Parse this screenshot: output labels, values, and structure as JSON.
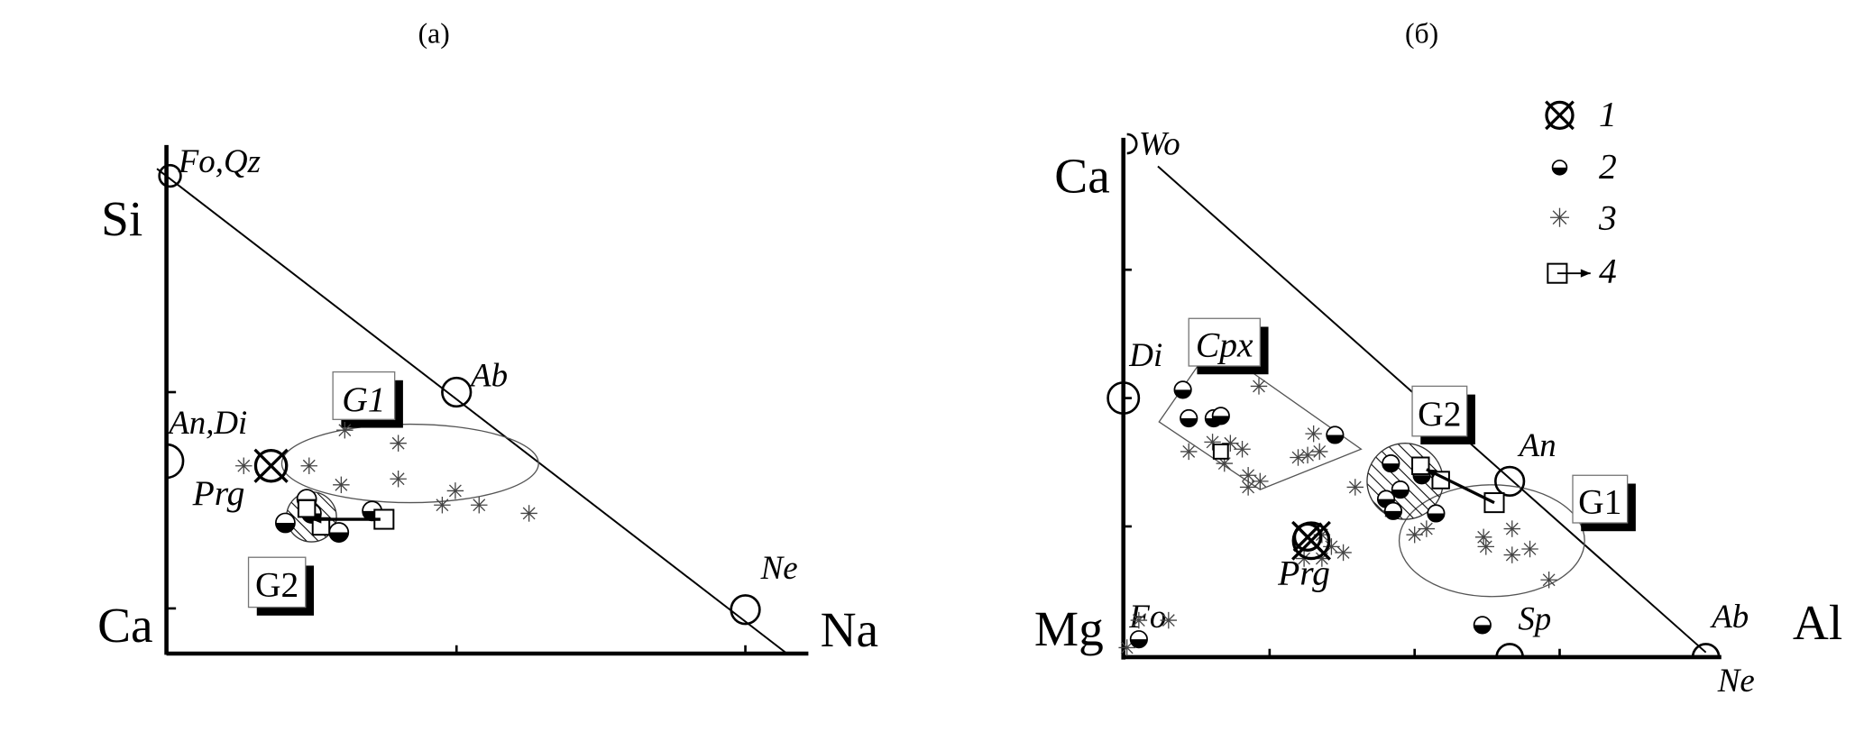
{
  "panel_a": {
    "caption": "(а)",
    "axis_top": "Si",
    "axis_bottom_left": "Ca",
    "axis_right": "Na",
    "minerals": {
      "fo_qz": "Fo,Qz",
      "an_di": "An,Di",
      "ab": "Ab",
      "ne": "Ne",
      "prg": "Prg"
    },
    "groups": {
      "g1": "G1",
      "g2": "G2"
    }
  },
  "panel_b": {
    "caption": "(б)",
    "axis_top": "Ca",
    "axis_bottom_left": "Mg",
    "axis_right": "Al",
    "minerals": {
      "wo": "Wo",
      "di": "Di",
      "an": "An",
      "ab": "Ab",
      "ne": "Ne",
      "sp": "Sp",
      "fo": "Fo",
      "prg": "Prg"
    },
    "groups": {
      "cpx": "Cpx",
      "g1": "G1",
      "g2": "G2"
    }
  },
  "legend": [
    {
      "symbol": "crossed-circle",
      "label": "1"
    },
    {
      "symbol": "half-filled-circle",
      "label": "2"
    },
    {
      "symbol": "asterisk",
      "label": "3"
    },
    {
      "symbol": "square-with-arrow",
      "label": "4"
    }
  ],
  "colors": {
    "ink": "#000000",
    "secondary_ink": "#444444",
    "background": "#ffffff"
  }
}
